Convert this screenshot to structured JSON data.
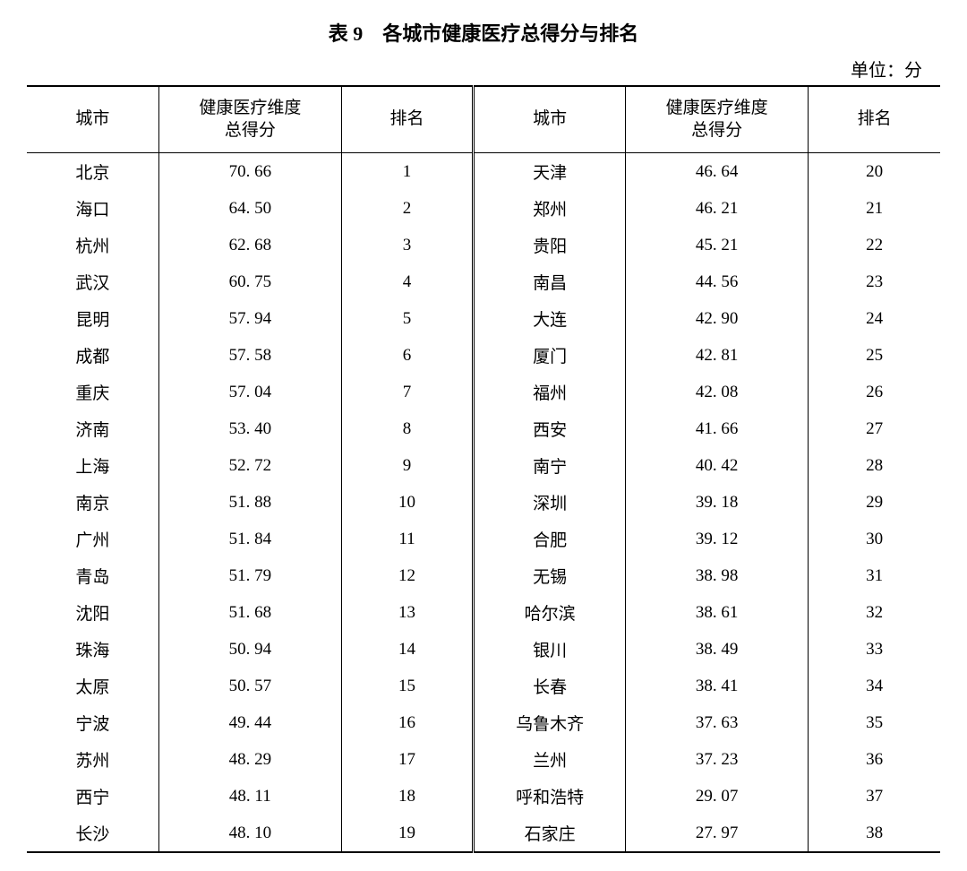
{
  "title": "表 9　各城市健康医疗总得分与排名",
  "unit": "单位：分",
  "headers": {
    "city": "城市",
    "score": "健康医疗维度\n总得分",
    "rank": "排名"
  },
  "table": {
    "type": "table",
    "columns": [
      "city_l",
      "score_l",
      "rank_l",
      "city_r",
      "score_r",
      "rank_r"
    ],
    "column_widths_pct": [
      13,
      18,
      13,
      15,
      18,
      13
    ],
    "alignment": "center",
    "border_color": "#000000",
    "background_color": "#ffffff",
    "font_family": "SimSun",
    "font_size_pt": 14,
    "header_font_size_pt": 14,
    "rows": [
      {
        "city_l": "北京",
        "score_l": "70. 66",
        "rank_l": "1",
        "city_r": "天津",
        "score_r": "46. 64",
        "rank_r": "20"
      },
      {
        "city_l": "海口",
        "score_l": "64. 50",
        "rank_l": "2",
        "city_r": "郑州",
        "score_r": "46. 21",
        "rank_r": "21"
      },
      {
        "city_l": "杭州",
        "score_l": "62. 68",
        "rank_l": "3",
        "city_r": "贵阳",
        "score_r": "45. 21",
        "rank_r": "22"
      },
      {
        "city_l": "武汉",
        "score_l": "60. 75",
        "rank_l": "4",
        "city_r": "南昌",
        "score_r": "44. 56",
        "rank_r": "23"
      },
      {
        "city_l": "昆明",
        "score_l": "57. 94",
        "rank_l": "5",
        "city_r": "大连",
        "score_r": "42. 90",
        "rank_r": "24"
      },
      {
        "city_l": "成都",
        "score_l": "57. 58",
        "rank_l": "6",
        "city_r": "厦门",
        "score_r": "42. 81",
        "rank_r": "25"
      },
      {
        "city_l": "重庆",
        "score_l": "57. 04",
        "rank_l": "7",
        "city_r": "福州",
        "score_r": "42. 08",
        "rank_r": "26"
      },
      {
        "city_l": "济南",
        "score_l": "53. 40",
        "rank_l": "8",
        "city_r": "西安",
        "score_r": "41. 66",
        "rank_r": "27"
      },
      {
        "city_l": "上海",
        "score_l": "52. 72",
        "rank_l": "9",
        "city_r": "南宁",
        "score_r": "40. 42",
        "rank_r": "28"
      },
      {
        "city_l": "南京",
        "score_l": "51. 88",
        "rank_l": "10",
        "city_r": "深圳",
        "score_r": "39. 18",
        "rank_r": "29"
      },
      {
        "city_l": "广州",
        "score_l": "51. 84",
        "rank_l": "11",
        "city_r": "合肥",
        "score_r": "39. 12",
        "rank_r": "30"
      },
      {
        "city_l": "青岛",
        "score_l": "51. 79",
        "rank_l": "12",
        "city_r": "无锡",
        "score_r": "38. 98",
        "rank_r": "31"
      },
      {
        "city_l": "沈阳",
        "score_l": "51. 68",
        "rank_l": "13",
        "city_r": "哈尔滨",
        "score_r": "38. 61",
        "rank_r": "32"
      },
      {
        "city_l": "珠海",
        "score_l": "50. 94",
        "rank_l": "14",
        "city_r": "银川",
        "score_r": "38. 49",
        "rank_r": "33"
      },
      {
        "city_l": "太原",
        "score_l": "50. 57",
        "rank_l": "15",
        "city_r": "长春",
        "score_r": "38. 41",
        "rank_r": "34"
      },
      {
        "city_l": "宁波",
        "score_l": "49. 44",
        "rank_l": "16",
        "city_r": "乌鲁木齐",
        "score_r": "37. 63",
        "rank_r": "35"
      },
      {
        "city_l": "苏州",
        "score_l": "48. 29",
        "rank_l": "17",
        "city_r": "兰州",
        "score_r": "37. 23",
        "rank_r": "36"
      },
      {
        "city_l": "西宁",
        "score_l": "48. 11",
        "rank_l": "18",
        "city_r": "呼和浩特",
        "score_r": "29. 07",
        "rank_r": "37"
      },
      {
        "city_l": "长沙",
        "score_l": "48. 10",
        "rank_l": "19",
        "city_r": "石家庄",
        "score_r": "27. 97",
        "rank_r": "38"
      }
    ]
  }
}
